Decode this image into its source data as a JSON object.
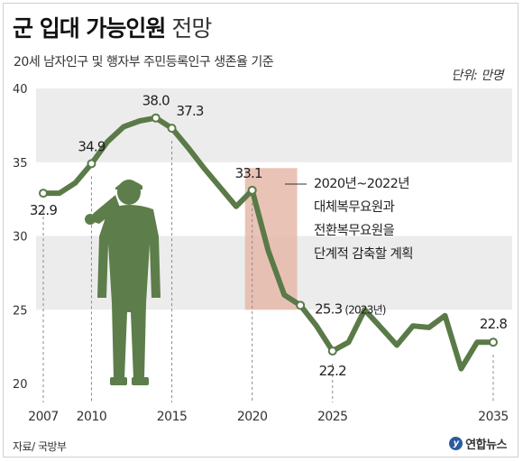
{
  "header": {
    "title_bold": "군 입대 가능인원",
    "title_light": "전망",
    "subtitle": "20세 남자인구 및 행자부 주민등록인구 생존율 기준",
    "unit": "단위: 만명"
  },
  "footer": {
    "source": "자료/ 국방부",
    "logo_text": "연합뉴스"
  },
  "chart_data": {
    "type": "line",
    "title": "군 입대 가능인원 전망",
    "xlabel": "",
    "ylabel": "",
    "xlim": [
      2007,
      2035
    ],
    "ylim": [
      20,
      40
    ],
    "yticks": [
      20,
      25,
      30,
      35,
      40
    ],
    "xticks": [
      2007,
      2010,
      2015,
      2020,
      2025,
      2035
    ],
    "band_ranges": [
      [
        25,
        30
      ],
      [
        35,
        40
      ]
    ],
    "series": [
      {
        "name": "",
        "color": "#5a7a48",
        "x": [
          2007,
          2008,
          2009,
          2010,
          2011,
          2012,
          2013,
          2014,
          2015,
          2016,
          2017,
          2018,
          2019,
          2020,
          2021,
          2022,
          2023,
          2024,
          2025,
          2026,
          2027,
          2028,
          2029,
          2030,
          2031,
          2032,
          2033,
          2034,
          2035
        ],
        "values": [
          32.9,
          32.9,
          33.6,
          34.9,
          36.4,
          37.4,
          37.8,
          38.0,
          37.3,
          36.0,
          34.6,
          33.3,
          32.0,
          33.1,
          29.0,
          26.0,
          25.3,
          23.9,
          22.2,
          22.8,
          25.0,
          23.8,
          22.6,
          23.9,
          23.8,
          24.6,
          21.0,
          22.8,
          22.8
        ]
      }
    ],
    "data_labels": [
      {
        "x": 2007,
        "y": 32.9,
        "text": "32.9"
      },
      {
        "x": 2010,
        "y": 34.9,
        "text": "34.9"
      },
      {
        "x": 2014,
        "y": 38.0,
        "text": "38.0"
      },
      {
        "x": 2015,
        "y": 37.3,
        "text": "37.3"
      },
      {
        "x": 2020,
        "y": 33.1,
        "text": "33.1"
      },
      {
        "x": 2023,
        "y": 25.3,
        "text": "25.3",
        "note": "(2023년)"
      },
      {
        "x": 2025,
        "y": 22.2,
        "text": "22.2"
      },
      {
        "x": 2035,
        "y": 22.8,
        "text": "22.8"
      }
    ],
    "highlight": {
      "x_range": [
        2020,
        2022
      ],
      "color": "#e6b9aa",
      "annotation": [
        "2020년~2022년",
        "대체복무요원과",
        "전환복무요원을",
        "단계적 감축할 계획"
      ]
    },
    "grid": false,
    "band_color": "#ececec",
    "line_color": "#5a7a48",
    "marker_fill": "#ffffff"
  }
}
